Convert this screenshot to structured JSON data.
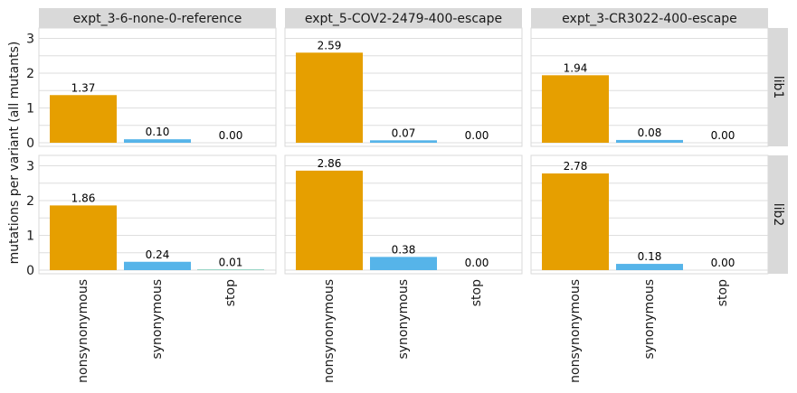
{
  "chart_data": {
    "type": "bar",
    "ylabel": "mutations per variant (all mutants)",
    "xlabel": "",
    "ylim": [
      0,
      3.2
    ],
    "yticks": [
      0,
      1,
      2,
      3
    ],
    "grid": true,
    "facet_columns": [
      "expt_3-6-none-0-reference",
      "expt_5-COV2-2479-400-escape",
      "expt_3-CR3022-400-escape"
    ],
    "facet_rows": [
      "lib1",
      "lib2"
    ],
    "categories": [
      "nonsynonymous",
      "synonymous",
      "stop"
    ],
    "category_colors": [
      "#E69F00",
      "#56B4E9",
      "#009E73"
    ],
    "panels": [
      {
        "column": "expt_3-6-none-0-reference",
        "row": "lib1",
        "values": [
          1.37,
          0.1,
          0.0
        ],
        "labels": [
          "1.37",
          "0.10",
          "0.00"
        ]
      },
      {
        "column": "expt_5-COV2-2479-400-escape",
        "row": "lib1",
        "values": [
          2.59,
          0.07,
          0.0
        ],
        "labels": [
          "2.59",
          "0.07",
          "0.00"
        ]
      },
      {
        "column": "expt_3-CR3022-400-escape",
        "row": "lib1",
        "values": [
          1.94,
          0.08,
          0.0
        ],
        "labels": [
          "1.94",
          "0.08",
          "0.00"
        ]
      },
      {
        "column": "expt_3-6-none-0-reference",
        "row": "lib2",
        "values": [
          1.86,
          0.24,
          0.01
        ],
        "labels": [
          "1.86",
          "0.24",
          "0.01"
        ]
      },
      {
        "column": "expt_5-COV2-2479-400-escape",
        "row": "lib2",
        "values": [
          2.86,
          0.38,
          0.0
        ],
        "labels": [
          "2.86",
          "0.38",
          "0.00"
        ]
      },
      {
        "column": "expt_3-CR3022-400-escape",
        "row": "lib2",
        "values": [
          2.78,
          0.18,
          0.0
        ],
        "labels": [
          "2.78",
          "0.18",
          "0.00"
        ]
      }
    ]
  }
}
